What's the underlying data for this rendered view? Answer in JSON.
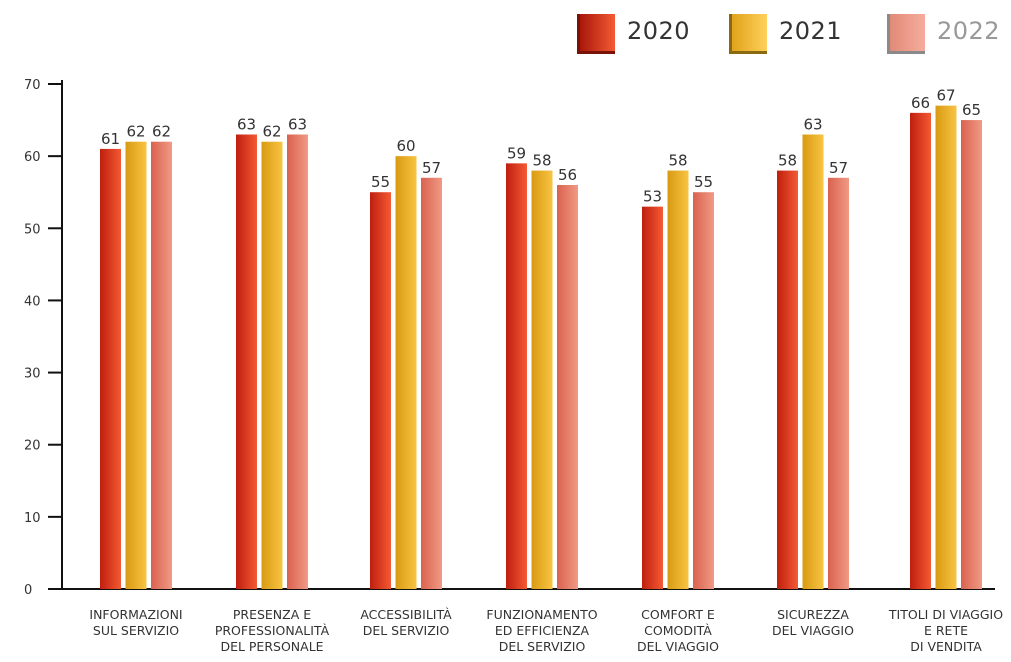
{
  "chart_data": {
    "type": "bar",
    "title": "",
    "xlabel": "",
    "ylabel": "",
    "ylim": [
      0,
      70
    ],
    "yticks": [
      0,
      10,
      20,
      30,
      40,
      50,
      60,
      70
    ],
    "grid": false,
    "legend_position": "top-right",
    "categories": [
      [
        "INFORMAZIONI",
        "SUL SERVIZIO"
      ],
      [
        "PRESENZA E",
        "PROFESSIONALITÀ",
        "DEL PERSONALE"
      ],
      [
        "ACCESSIBILITÀ",
        "DEL SERVIZIO"
      ],
      [
        "FUNZIONAMENTO",
        "ED EFFICIENZA",
        "DEL SERVIZIO"
      ],
      [
        "COMFORT E",
        "COMODITÀ",
        "DEL VIAGGIO"
      ],
      [
        "SICUREZZA",
        "DEL VIAGGIO"
      ],
      [
        "TITOLI DI VIAGGIO",
        "E RETE",
        "DI VENDITA"
      ]
    ],
    "series": [
      {
        "name": "2020",
        "values": [
          61,
          63,
          55,
          59,
          53,
          58,
          66
        ]
      },
      {
        "name": "2021",
        "values": [
          62,
          62,
          60,
          58,
          58,
          63,
          67
        ]
      },
      {
        "name": "2022",
        "values": [
          62,
          63,
          57,
          56,
          55,
          57,
          65
        ]
      }
    ],
    "colors": {
      "2020": {
        "dark": "#bf1e0e",
        "light": "#f45a34"
      },
      "2021": {
        "dark": "#d99a12",
        "light": "#f7c443"
      },
      "2022": {
        "dark": "#d9624f",
        "light": "#f09a85"
      }
    }
  }
}
